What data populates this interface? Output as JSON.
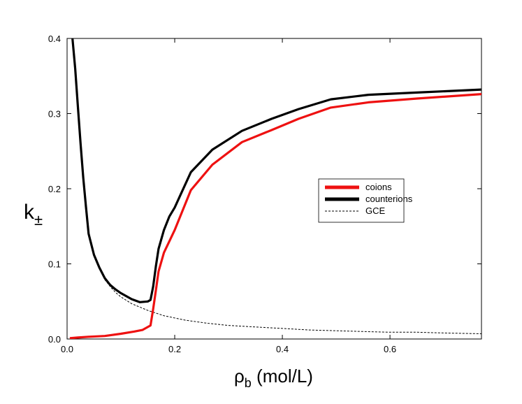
{
  "chart_data": {
    "type": "line",
    "xlabel_symbol": "ρ",
    "xlabel_sub": "b",
    "xlabel_unit": " (mol/L)",
    "ylabel_symbol": "k",
    "ylabel_sub": "±",
    "xlim": [
      0,
      0.77
    ],
    "ylim": [
      0,
      0.4
    ],
    "xticks": [
      0.0,
      0.2,
      0.4,
      0.6
    ],
    "xtick_labels": [
      "0.0",
      "0.2",
      "0.4",
      "0.6"
    ],
    "yticks": [
      0.0,
      0.1,
      0.2,
      0.3,
      0.4
    ],
    "ytick_labels": [
      "0.0",
      "0.1",
      "0.2",
      "0.3",
      "0.4"
    ],
    "grid": false,
    "legend_position": "center-right",
    "series": [
      {
        "name": "coions",
        "color": "#ee1111",
        "style": "solid-thick",
        "x": [
          0.005,
          0.02,
          0.04,
          0.07,
          0.1,
          0.125,
          0.14,
          0.155,
          0.16,
          0.165,
          0.17,
          0.18,
          0.19,
          0.2,
          0.23,
          0.27,
          0.325,
          0.38,
          0.43,
          0.49,
          0.56,
          0.65,
          0.77
        ],
        "y": [
          0.001,
          0.002,
          0.003,
          0.004,
          0.007,
          0.01,
          0.012,
          0.018,
          0.04,
          0.065,
          0.09,
          0.115,
          0.13,
          0.145,
          0.198,
          0.232,
          0.262,
          0.278,
          0.293,
          0.308,
          0.315,
          0.32,
          0.326
        ]
      },
      {
        "name": "counterions",
        "color": "#000000",
        "style": "solid-thick",
        "x": [
          0.01,
          0.015,
          0.02,
          0.025,
          0.03,
          0.035,
          0.04,
          0.05,
          0.06,
          0.07,
          0.08,
          0.09,
          0.1,
          0.12,
          0.135,
          0.15,
          0.155,
          0.16,
          0.165,
          0.17,
          0.18,
          0.19,
          0.2,
          0.23,
          0.27,
          0.325,
          0.38,
          0.43,
          0.49,
          0.56,
          0.65,
          0.77
        ],
        "y": [
          0.4,
          0.36,
          0.31,
          0.26,
          0.215,
          0.176,
          0.14,
          0.112,
          0.095,
          0.081,
          0.072,
          0.066,
          0.061,
          0.053,
          0.049,
          0.05,
          0.052,
          0.07,
          0.097,
          0.12,
          0.145,
          0.163,
          0.175,
          0.222,
          0.252,
          0.277,
          0.293,
          0.306,
          0.319,
          0.325,
          0.328,
          0.332
        ]
      },
      {
        "name": "GCE",
        "color": "#000000",
        "style": "dashed-thin",
        "x": [
          0.07,
          0.08,
          0.09,
          0.1,
          0.12,
          0.15,
          0.18,
          0.22,
          0.26,
          0.3,
          0.35,
          0.4,
          0.45,
          0.5,
          0.55,
          0.6,
          0.65,
          0.7,
          0.77
        ],
        "y": [
          0.079,
          0.07,
          0.062,
          0.056,
          0.047,
          0.038,
          0.031,
          0.025,
          0.021,
          0.018,
          0.016,
          0.014,
          0.012,
          0.011,
          0.01,
          0.009,
          0.009,
          0.008,
          0.007
        ]
      }
    ]
  }
}
